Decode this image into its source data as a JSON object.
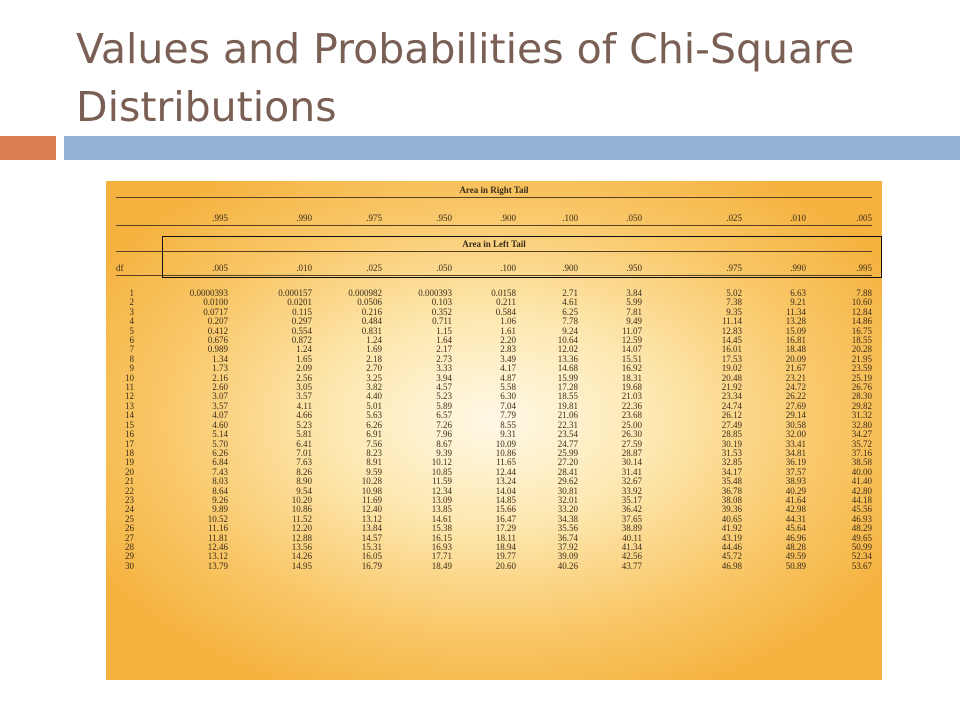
{
  "title": "Values and Probabilities of Chi-Square Distributions",
  "table": {
    "right_tail_heading": "Area in Right Tail",
    "left_tail_heading": "Area in Left Tail",
    "df_label": "df",
    "right_tail_values": [
      ".995",
      ".990",
      ".975",
      ".950",
      ".900",
      ".100",
      ".050",
      ".025",
      ".010",
      ".005"
    ],
    "left_tail_values": [
      ".005",
      ".010",
      ".025",
      ".050",
      ".100",
      ".900",
      ".950",
      ".975",
      ".990",
      ".995"
    ],
    "rows": [
      [
        "1",
        "0.0000393",
        "0.000157",
        "0.000982",
        "0.000393",
        "0.0158",
        "2.71",
        "3.84",
        "5.02",
        "6.63",
        "7.88"
      ],
      [
        "2",
        "0.0100",
        "0.0201",
        "0.0506",
        "0.103",
        "0.211",
        "4.61",
        "5.99",
        "7.38",
        "9.21",
        "10.60"
      ],
      [
        "3",
        "0.0717",
        "0.115",
        "0.216",
        "0.352",
        "0.584",
        "6.25",
        "7.81",
        "9.35",
        "11.34",
        "12.84"
      ],
      [
        "4",
        "0.207",
        "0.297",
        "0.484",
        "0.711",
        "1.06",
        "7.78",
        "9.49",
        "11.14",
        "13.28",
        "14.86"
      ],
      [
        "5",
        "0.412",
        "0.554",
        "0.831",
        "1.15",
        "1.61",
        "9.24",
        "11.07",
        "12.83",
        "15.09",
        "16.75"
      ],
      [
        "6",
        "0.676",
        "0.872",
        "1.24",
        "1.64",
        "2.20",
        "10.64",
        "12.59",
        "14.45",
        "16.81",
        "18.55"
      ],
      [
        "7",
        "0.989",
        "1.24",
        "1.69",
        "2.17",
        "2.83",
        "12.02",
        "14.07",
        "16.01",
        "18.48",
        "20.28"
      ],
      [
        "8",
        "1.34",
        "1.65",
        "2.18",
        "2.73",
        "3.49",
        "13.36",
        "15.51",
        "17.53",
        "20.09",
        "21.95"
      ],
      [
        "9",
        "1.73",
        "2.09",
        "2.70",
        "3.33",
        "4.17",
        "14.68",
        "16.92",
        "19.02",
        "21.67",
        "23.59"
      ],
      [
        "10",
        "2.16",
        "2.56",
        "3.25",
        "3.94",
        "4.87",
        "15.99",
        "18.31",
        "20.48",
        "23.21",
        "25.19"
      ],
      [
        "11",
        "2.60",
        "3.05",
        "3.82",
        "4.57",
        "5.58",
        "17.28",
        "19.68",
        "21.92",
        "24.72",
        "26.76"
      ],
      [
        "12",
        "3.07",
        "3.57",
        "4.40",
        "5.23",
        "6.30",
        "18.55",
        "21.03",
        "23.34",
        "26.22",
        "28.30"
      ],
      [
        "13",
        "3.57",
        "4.11",
        "5.01",
        "5.89",
        "7.04",
        "19.81",
        "22.36",
        "24.74",
        "27.69",
        "29.82"
      ],
      [
        "14",
        "4.07",
        "4.66",
        "5.63",
        "6.57",
        "7.79",
        "21.06",
        "23.68",
        "26.12",
        "29.14",
        "31.32"
      ],
      [
        "15",
        "4.60",
        "5.23",
        "6.26",
        "7.26",
        "8.55",
        "22.31",
        "25.00",
        "27.49",
        "30.58",
        "32.80"
      ],
      [
        "16",
        "5.14",
        "5.81",
        "6.91",
        "7.96",
        "9.31",
        "23.54",
        "26.30",
        "28.85",
        "32.00",
        "34.27"
      ],
      [
        "17",
        "5.70",
        "6.41",
        "7.56",
        "8.67",
        "10.09",
        "24.77",
        "27.59",
        "30.19",
        "33.41",
        "35.72"
      ],
      [
        "18",
        "6.26",
        "7.01",
        "8.23",
        "9.39",
        "10.86",
        "25.99",
        "28.87",
        "31.53",
        "34.81",
        "37.16"
      ],
      [
        "19",
        "6.84",
        "7.63",
        "8.91",
        "10.12",
        "11.65",
        "27.20",
        "30.14",
        "32.85",
        "36.19",
        "38.58"
      ],
      [
        "20",
        "7.43",
        "8.26",
        "9.59",
        "10.85",
        "12.44",
        "28.41",
        "31.41",
        "34.17",
        "37.57",
        "40.00"
      ],
      [
        "21",
        "8.03",
        "8.90",
        "10.28",
        "11.59",
        "13.24",
        "29.62",
        "32.67",
        "35.48",
        "38.93",
        "41.40"
      ],
      [
        "22",
        "8.64",
        "9.54",
        "10.98",
        "12.34",
        "14.04",
        "30.81",
        "33.92",
        "36.78",
        "40.29",
        "42.80"
      ],
      [
        "23",
        "9.26",
        "10.20",
        "11.69",
        "13.09",
        "14.85",
        "32.01",
        "35.17",
        "38.08",
        "41.64",
        "44.18"
      ],
      [
        "24",
        "9.89",
        "10.86",
        "12.40",
        "13.85",
        "15.66",
        "33.20",
        "36.42",
        "39.36",
        "42.98",
        "45.56"
      ],
      [
        "25",
        "10.52",
        "11.52",
        "13.12",
        "14.61",
        "16.47",
        "34.38",
        "37.65",
        "40.65",
        "44.31",
        "46.93"
      ],
      [
        "26",
        "11.16",
        "12.20",
        "13.84",
        "15.38",
        "17.29",
        "35.56",
        "38.89",
        "41.92",
        "45.64",
        "48.29"
      ],
      [
        "27",
        "11.81",
        "12.88",
        "14.57",
        "16.15",
        "18.11",
        "36.74",
        "40.11",
        "43.19",
        "46.96",
        "49.65"
      ],
      [
        "28",
        "12.46",
        "13.56",
        "15.31",
        "16.93",
        "18.94",
        "37.92",
        "41.34",
        "44.46",
        "48.28",
        "50.99"
      ],
      [
        "29",
        "13.12",
        "14.26",
        "16.05",
        "17.71",
        "19.77",
        "39.09",
        "42.56",
        "45.72",
        "49.59",
        "52.34"
      ],
      [
        "30",
        "13.79",
        "14.95",
        "16.79",
        "18.49",
        "20.60",
        "40.26",
        "43.77",
        "46.98",
        "50.89",
        "53.67"
      ]
    ]
  },
  "colors": {
    "title": "#7a5f55",
    "accent_orange": "#dc7f53",
    "accent_blue": "#92b1d3",
    "panel_center": "#fff8e6",
    "panel_edge": "#f5b23e"
  }
}
